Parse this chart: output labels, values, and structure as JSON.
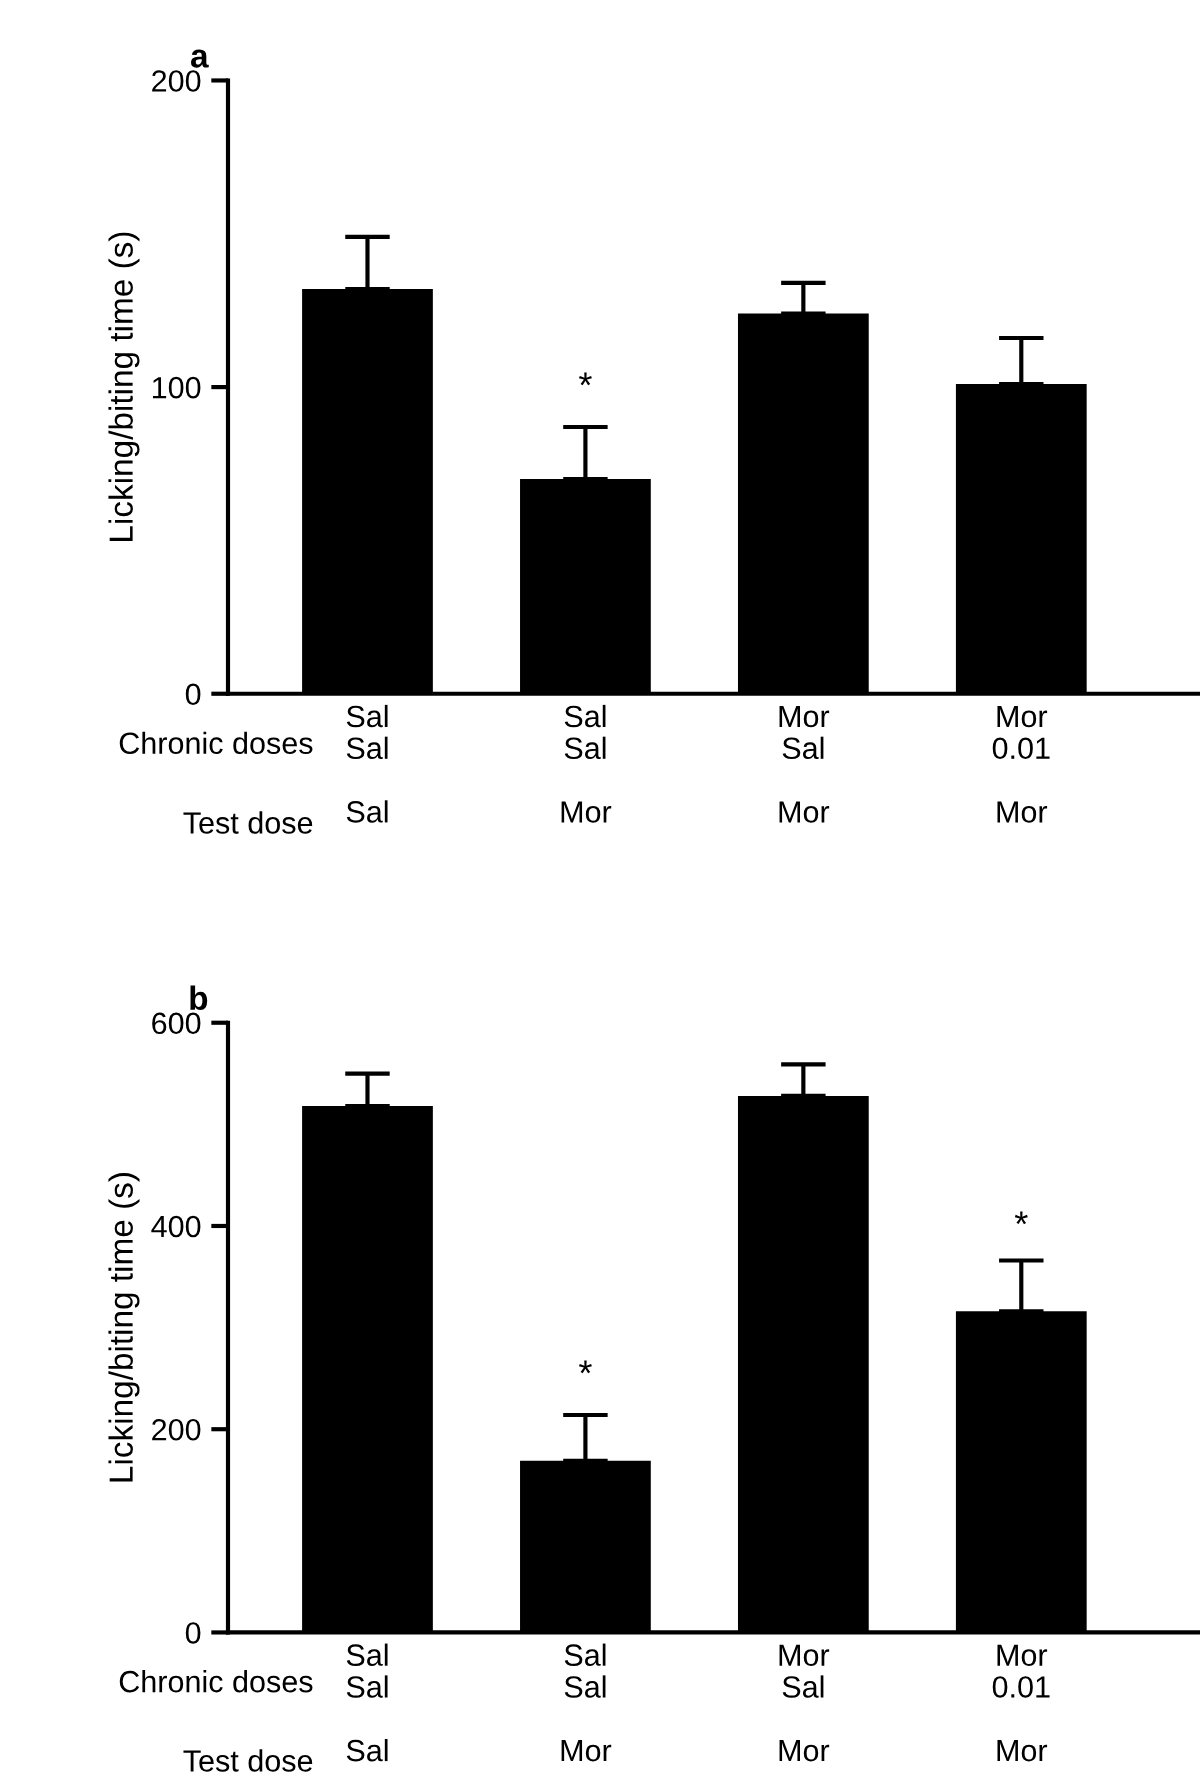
{
  "chart_data": [
    {
      "type": "bar",
      "title": "a",
      "ylabel": "Licking/biting time (s)",
      "categories": [
        "Sal\nSal\n\nSal",
        "Sal\nSal\n\nMor",
        "Mor\nSal\n\nMor",
        "Mor\n0.01\n\nMor"
      ],
      "values": [
        132,
        70,
        124,
        101
      ],
      "errors": [
        [
          132,
          149
        ],
        [
          70,
          87
        ],
        [
          124,
          134
        ],
        [
          101,
          116
        ]
      ],
      "color": "#000000",
      "ylim": [
        0,
        200
      ],
      "yticks": [
        0,
        100,
        200
      ],
      "grid": false,
      "legend": false,
      "annotations": [
        "Chronic doses",
        "Test dose",
        {
          "text": "*",
          "x": "Sal\nSal\n\nMor",
          "y": 87
        }
      ]
    },
    {
      "type": "bar",
      "title": "b",
      "ylabel": "Licking/biting time (s)",
      "categories": [
        "Sal\nSal\n\nSal",
        "Sal\nSal\n\nMor",
        "Mor\nSal\n\nMor",
        "Mor\n0.01\n\nMor"
      ],
      "values": [
        518,
        169,
        528,
        316
      ],
      "errors": [
        [
          518,
          550
        ],
        [
          169,
          214
        ],
        [
          528,
          559
        ],
        [
          316,
          366
        ]
      ],
      "color": "#000000",
      "ylim": [
        0,
        600
      ],
      "yticks": [
        0,
        200,
        400,
        600
      ],
      "grid": false,
      "legend": false,
      "annotations": [
        "Chronic doses",
        "Test dose",
        {
          "text": "*",
          "x": "Sal\nSal\n\nMor",
          "y": 214
        },
        "*"
      ]
    }
  ]
}
